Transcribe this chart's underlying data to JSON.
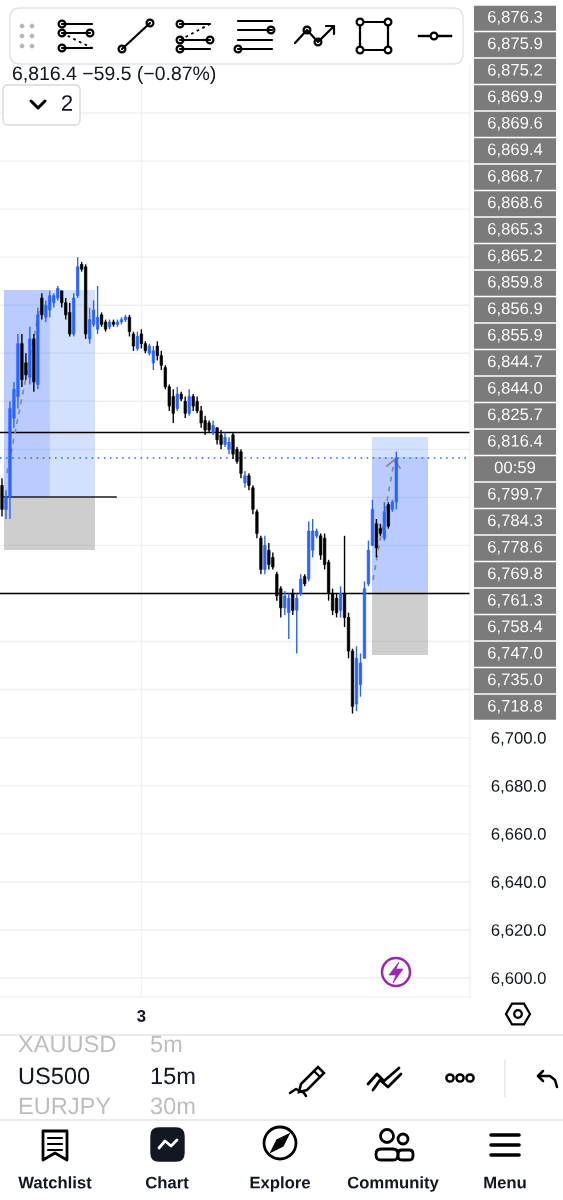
{
  "chart_data": {
    "type": "candlestick",
    "title": "6,816.4 −59.5 (−0.87%)",
    "categories": [
      null,
      null,
      null,
      null,
      null,
      null,
      null,
      null,
      null,
      null,
      null,
      null,
      null,
      null,
      null,
      null,
      null,
      null,
      null,
      null,
      null,
      null,
      null,
      null,
      null,
      null,
      null,
      null,
      null,
      null,
      null,
      null,
      null,
      null,
      null,
      "3",
      null,
      null,
      null,
      null,
      null,
      null,
      null,
      null,
      null,
      null,
      null,
      null,
      null,
      null,
      null,
      null,
      null,
      null,
      null,
      null,
      null,
      null,
      null,
      null,
      null,
      null,
      null,
      null,
      null,
      null,
      null,
      null,
      null,
      null,
      null,
      null,
      null,
      null,
      null,
      null,
      null,
      null,
      null,
      null,
      null,
      null,
      null,
      null,
      null,
      null,
      null,
      null,
      null,
      null,
      null,
      null,
      null,
      null,
      null,
      null,
      null,
      null,
      null,
      null,
      null,
      null,
      null,
      null,
      null,
      null,
      null,
      null,
      null,
      null,
      null,
      null,
      null,
      null,
      null,
      null,
      null,
      null
    ],
    "ohlc": [
      [
        6805,
        6808,
        6792,
        6795
      ],
      [
        6795,
        6803,
        6791,
        6800
      ],
      [
        6800,
        6840,
        6791,
        6837
      ],
      [
        6833,
        6848,
        6829,
        6845
      ],
      [
        6842,
        6868,
        6837,
        6864
      ],
      [
        6864,
        6868,
        6846,
        6849
      ],
      [
        6856,
        6860,
        6849,
        6851
      ],
      [
        6850,
        6871,
        6847,
        6866
      ],
      [
        6866,
        6868,
        6844,
        6848
      ],
      [
        6847,
        6879,
        6845,
        6876
      ],
      [
        6883,
        6885,
        6874,
        6876
      ],
      [
        6875,
        6882,
        6873,
        6880
      ],
      [
        6878,
        6886,
        6875,
        6884
      ],
      [
        6881,
        6885,
        6879,
        6884
      ],
      [
        6883,
        6888,
        6882,
        6887
      ],
      [
        6886,
        6886,
        6879,
        6881
      ],
      [
        6881,
        6883,
        6874,
        6876
      ],
      [
        6877,
        6881,
        6867,
        6868
      ],
      [
        6868,
        6885,
        6867,
        6883
      ],
      [
        6884,
        6900,
        6883,
        6896
      ],
      [
        6897,
        6898,
        6894,
        6895
      ],
      [
        6896,
        6897,
        6866,
        6868
      ],
      [
        6866,
        6879,
        6864,
        6874
      ],
      [
        6872,
        6882,
        6871,
        6878
      ],
      [
        6870,
        6888,
        6868,
        6875
      ],
      [
        6876,
        6877,
        6871,
        6872
      ],
      [
        6873,
        6874,
        6869,
        6870
      ],
      [
        6871,
        6874,
        6870,
        6873
      ],
      [
        6873,
        6874,
        6871,
        6872
      ],
      [
        6872,
        6874,
        6871,
        6873
      ],
      [
        6873,
        6875,
        6872,
        6874
      ],
      [
        6874,
        6876,
        6873,
        6875
      ],
      [
        6875,
        6876,
        6867,
        6869
      ],
      [
        6868,
        6869,
        6861,
        6863
      ],
      [
        6862,
        6869,
        6861,
        6867
      ],
      [
        6868,
        6870,
        6862,
        6864
      ],
      [
        6864,
        6865,
        6860,
        6861
      ],
      [
        6860,
        6864,
        6859,
        6863
      ],
      [
        6856,
        6863,
        6853,
        6861
      ],
      [
        6863,
        6865,
        6857,
        6859
      ],
      [
        6859,
        6861,
        6853,
        6855
      ],
      [
        6854,
        6855,
        6845,
        6846
      ],
      [
        6846,
        6847,
        6836,
        6838
      ],
      [
        6842,
        6845,
        6831,
        6835
      ],
      [
        6837,
        6846,
        6836,
        6843
      ],
      [
        6843,
        6844,
        6840,
        6841
      ],
      [
        6840,
        6842,
        6833,
        6835
      ],
      [
        6835,
        6845,
        6834,
        6842
      ],
      [
        6842,
        6843,
        6836,
        6838
      ],
      [
        6840,
        6842,
        6835,
        6836
      ],
      [
        6836,
        6838,
        6829,
        6831
      ],
      [
        6832,
        6834,
        6826,
        6828
      ],
      [
        6831,
        6832,
        6827,
        6828
      ],
      [
        6827,
        6832,
        6826,
        6830
      ],
      [
        6829,
        6829,
        6822,
        6824
      ],
      [
        6826,
        6828,
        6820,
        6822
      ],
      [
        6822,
        6827,
        6821,
        6825
      ],
      [
        6820,
        6825,
        6818,
        6823
      ],
      [
        6826,
        6827,
        6816,
        6818
      ],
      [
        6820,
        6821,
        6814,
        6815
      ],
      [
        6819,
        6820,
        6808,
        6810
      ],
      [
        6806,
        6811,
        6804,
        6809
      ],
      [
        6809,
        6810,
        6803,
        6805
      ],
      [
        6804,
        6805,
        6793,
        6795
      ],
      [
        6794,
        6795,
        6783,
        6785
      ],
      [
        6783,
        6784,
        6768,
        6770
      ],
      [
        6770,
        6784,
        6768,
        6780
      ],
      [
        6778,
        6781,
        6770,
        6772
      ],
      [
        6775,
        6777,
        6770,
        6771
      ],
      [
        6768,
        6769,
        6757,
        6759
      ],
      [
        6762,
        6763,
        6750,
        6754
      ],
      [
        6754,
        6761,
        6751,
        6759
      ],
      [
        6752,
        6760,
        6741,
        6758
      ],
      [
        6760,
        6762,
        6751,
        6753
      ],
      [
        6753,
        6760,
        6735,
        6758
      ],
      [
        6760,
        6768,
        6759,
        6766
      ],
      [
        6767,
        6768,
        6763,
        6764
      ],
      [
        6766,
        6790,
        6765,
        6786
      ],
      [
        6778,
        6791,
        6775,
        6786
      ],
      [
        6784,
        6787,
        6783,
        6786
      ],
      [
        6784,
        6785,
        6774,
        6776
      ],
      [
        6783,
        6785,
        6770,
        6772
      ],
      [
        6773,
        6774,
        6757,
        6760
      ],
      [
        6760,
        6762,
        6751,
        6753
      ],
      [
        6758,
        6760,
        6750,
        6752
      ],
      [
        6753,
        6763,
        6750,
        6760
      ],
      [
        6760,
        6784,
        6746,
        6750
      ],
      [
        6750,
        6752,
        6733,
        6736
      ],
      [
        6736,
        6737,
        6710,
        6713
      ],
      [
        6714,
        6738,
        6711,
        6733
      ],
      [
        6722,
        6735,
        6717,
        6731
      ],
      [
        6733,
        6765,
        6733,
        6762
      ],
      [
        6764,
        6782,
        6763,
        6778
      ],
      [
        6780,
        6799,
        6780,
        6795
      ],
      [
        6789,
        6791,
        6775,
        6779
      ],
      [
        6787,
        6789,
        6784,
        6785
      ],
      [
        6783,
        6798,
        6782,
        6794
      ],
      [
        6797,
        6798,
        6787,
        6788
      ],
      [
        6795,
        6799,
        6794,
        6798
      ],
      [
        6798,
        6819,
        6795,
        6816.4
      ],
      null,
      null,
      null,
      null,
      null,
      null,
      null,
      null,
      null,
      null,
      null,
      null,
      null,
      null,
      null,
      null,
      null,
      null
    ],
    "colors": [
      "#000000",
      "#2962ff",
      "#2962ff",
      "#2962ff",
      "#2962ff",
      "#000000",
      "#000000",
      "#2962ff",
      "#000000",
      "#2962ff",
      "#000000",
      "#2962ff",
      "#2962ff",
      "#2962ff",
      "#2962ff",
      "#000000",
      "#000000",
      "#000000",
      "#2962ff",
      "#2962ff",
      "#000000",
      "#000000",
      "#2962ff",
      "#2962ff",
      "#2962ff",
      "#000000",
      "#000000",
      "#2962ff",
      "#000000",
      "#2962ff",
      "#2962ff",
      "#2962ff",
      "#000000",
      "#000000",
      "#2962ff",
      "#000000",
      "#000000",
      "#2962ff",
      "#2962ff",
      "#000000",
      "#000000",
      "#000000",
      "#000000",
      "#000000",
      "#2962ff",
      "#000000",
      "#000000",
      "#2962ff",
      "#000000",
      "#000000",
      "#000000",
      "#000000",
      "#000000",
      "#2962ff",
      "#000000",
      "#000000",
      "#2962ff",
      "#2962ff",
      "#000000",
      "#000000",
      "#000000",
      "#2962ff",
      "#000000",
      "#000000",
      "#000000",
      "#000000",
      "#2962ff",
      "#000000",
      "#000000",
      "#000000",
      "#000000",
      "#2962ff",
      "#2962ff",
      "#000000",
      "#2962ff",
      "#2962ff",
      "#000000",
      "#2962ff",
      "#2962ff",
      "#2962ff",
      "#000000",
      "#000000",
      "#000000",
      "#000000",
      "#000000",
      "#2962ff",
      "#000000",
      "#000000",
      "#000000",
      "#2962ff",
      "#2962ff",
      "#2962ff",
      "#2962ff",
      "#2962ff",
      "#000000",
      "#000000",
      "#2962ff",
      "#000000",
      "#2962ff",
      "#2962ff",
      null,
      null,
      null,
      null,
      null,
      null,
      null,
      null,
      null,
      null,
      null,
      null,
      null,
      null,
      null,
      null,
      null,
      null
    ],
    "ylim": [
      6592,
      6980
    ],
    "yticks": [
      {
        "value": 6600,
        "label": "6,600.0"
      },
      {
        "value": 6620,
        "label": "6,620.0"
      },
      {
        "value": 6640,
        "label": "6,640.0"
      },
      {
        "value": 6660,
        "label": "6,660.0"
      },
      {
        "value": 6680,
        "label": "6,680.0"
      },
      {
        "value": 6700,
        "label": "6,700.0"
      },
      {
        "value": 6720,
        "label": null
      },
      {
        "value": 6740,
        "label": null
      },
      {
        "value": 6760,
        "label": null
      },
      {
        "value": 6780,
        "label": null
      },
      {
        "value": 6800,
        "label": null
      },
      {
        "value": 6820,
        "label": null
      },
      {
        "value": 6840,
        "label": null
      },
      {
        "value": 6860,
        "label": null
      },
      {
        "value": 6880,
        "label": null
      },
      {
        "value": 6900,
        "label": null
      },
      {
        "value": 6920,
        "label": null
      },
      {
        "value": 6940,
        "label": null
      },
      {
        "value": 6960,
        "label": null
      }
    ],
    "grid": true,
    "ref_lines": [
      {
        "axis": "y",
        "value": 6827,
        "color": "#000000"
      },
      {
        "axis": "y",
        "value": 6760,
        "color": "#000000"
      },
      {
        "axis": "y",
        "value": 6816.4,
        "color": "#2962ff",
        "line_style": "dotted"
      }
    ],
    "annotations": [
      "6,876.3",
      "6,875.9",
      "6,875.2",
      "6,869.9",
      "6,869.6",
      "6,869.4",
      "6,868.7",
      "6,868.6",
      "6,865.3",
      "6,865.2",
      "6,859.8",
      "6,856.9",
      "6,855.9",
      "6,844.7",
      "6,844.0",
      "6,825.7",
      "6,816.4",
      "00:59",
      "6,799.7",
      "6,784.3",
      "6,778.6",
      "6,769.8",
      "6,761.3",
      "6,758.4",
      "6,747.0",
      "6,735.0",
      "6,718.8",
      "2",
      "XAUUSD",
      "5m",
      "US500",
      "15m",
      "EURJPY",
      "30m",
      "Watchlist",
      "Chart",
      "Explore",
      "Community",
      "Menu"
    ]
  }
}
